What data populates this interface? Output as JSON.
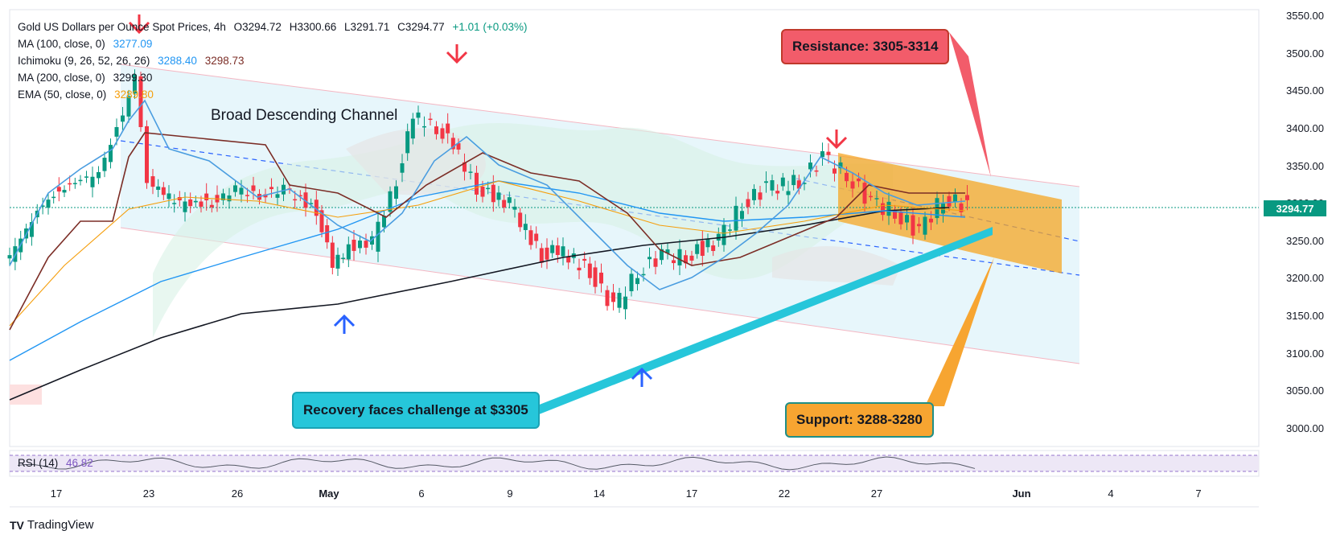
{
  "legend": {
    "symbol": "Gold US Dollars per Ounce Spot Prices, 4h",
    "open": "O3294.72",
    "high": "H3300.66",
    "low": "L3291.71",
    "close": "C3294.77",
    "change": "+1.01 (+0.03%)",
    "ma100_label": "MA (100, close, 0)",
    "ma100_value": "3277.09",
    "ichimoku_label": "Ichimoku (9, 26, 52, 26, 26)",
    "ichimoku_value1": "3288.40",
    "ichimoku_value2": "3298.73",
    "ma200_label": "MA (200, close, 0)",
    "ma200_value": "3299.30",
    "ema50_label": "EMA (50, close, 0)",
    "ema50_value": "3289.80"
  },
  "rsi": {
    "label": "RSI (14)",
    "value": "46.82"
  },
  "annotations": {
    "channel_title": "Broad Descending Channel",
    "resistance": "Resistance: 3305-3314",
    "support": "Support: 3288-3280",
    "recovery": "Recovery faces challenge at $3305"
  },
  "brand": {
    "name": "TradingView",
    "logo": "TV"
  },
  "colors": {
    "up": "#089981",
    "down": "#f23645",
    "channel": "#dff3fa",
    "orange_zone": "#f5a623",
    "resistance_box": "#f25c6a",
    "support_box": "#f7a531",
    "recovery_box": "#26c6da",
    "ma100": "#2196f3",
    "ma200": "#131722",
    "ema50": "#f59e0b",
    "ichimoku_base": "#7b2d26",
    "ichimoku_conv": "#4a9de0"
  },
  "chart_data": {
    "type": "line",
    "title": "Gold US Dollars per Ounce Spot Prices, 4h",
    "y_ticks": [
      3000,
      3050,
      3100,
      3150,
      3200,
      3250,
      3300,
      3350,
      3400,
      3450,
      3500,
      3550
    ],
    "ylim": [
      2975,
      3560
    ],
    "x_ticks": [
      "17",
      "23",
      "26",
      "May",
      "6",
      "9",
      "14",
      "17",
      "22",
      "27",
      "Jun",
      "4",
      "7"
    ],
    "current_price": "3294.77",
    "series": [
      {
        "name": "Close (approx.)",
        "x": [
          "Apr 15",
          "Apr 16",
          "Apr 17",
          "Apr 18",
          "Apr 21",
          "Apr 22",
          "Apr 23",
          "Apr 24",
          "Apr 25",
          "Apr 26",
          "Apr 28",
          "Apr 29",
          "Apr 30",
          "May 1",
          "May 2",
          "May 3",
          "May 5",
          "May 6",
          "May 7",
          "May 8",
          "May 9",
          "May 10",
          "May 12",
          "May 13",
          "May 14",
          "May 15",
          "May 16",
          "May 17",
          "May 19",
          "May 20",
          "May 21",
          "May 22",
          "May 23",
          "May 24",
          "May 26",
          "May 27",
          "May 28",
          "May 29",
          "May 30",
          "May 31"
        ],
        "values": [
          3220,
          3300,
          3330,
          3340,
          3420,
          3470,
          3330,
          3300,
          3300,
          3320,
          3310,
          3320,
          3290,
          3220,
          3240,
          3250,
          3330,
          3420,
          3400,
          3380,
          3320,
          3300,
          3230,
          3240,
          3210,
          3160,
          3210,
          3230,
          3230,
          3250,
          3300,
          3320,
          3330,
          3360,
          3340,
          3300,
          3290,
          3260,
          3310,
          3294.77
        ]
      }
    ],
    "rsi_value": 46.82
  }
}
